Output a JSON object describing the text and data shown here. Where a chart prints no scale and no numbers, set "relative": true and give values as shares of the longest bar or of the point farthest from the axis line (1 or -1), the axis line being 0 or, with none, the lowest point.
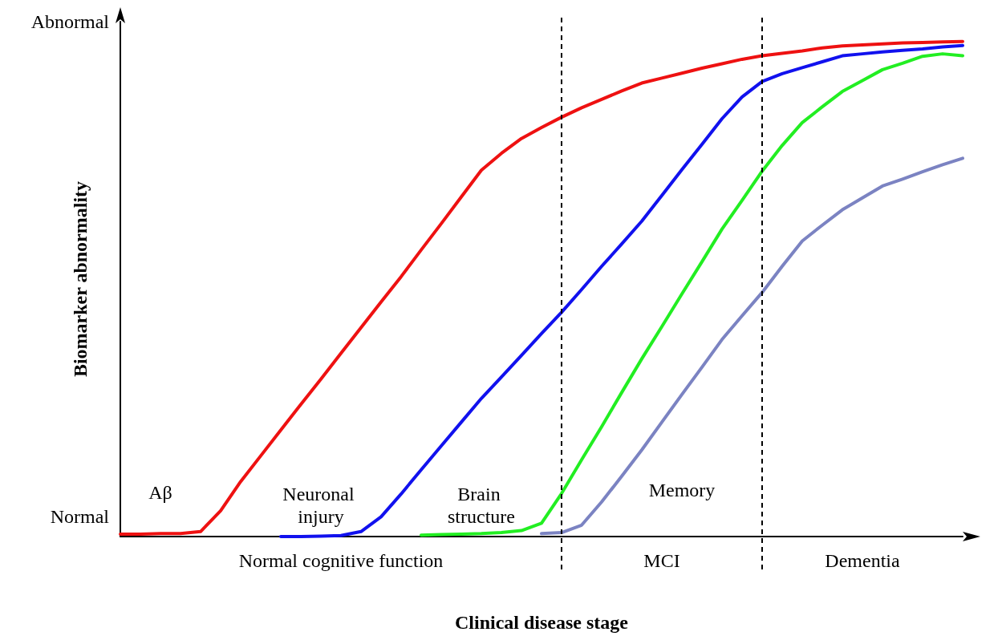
{
  "chart_data": {
    "type": "line",
    "relative": true,
    "xlabel": "Clinical disease stage",
    "ylabel": "Biomarker abnormality",
    "categories": [
      null,
      null,
      null,
      null,
      null,
      null,
      null,
      null,
      null,
      null,
      null,
      null,
      null,
      null,
      null,
      null,
      null,
      null,
      null,
      null,
      null,
      null,
      null,
      null,
      null,
      null,
      null,
      null,
      null,
      null,
      null,
      null,
      null,
      null,
      null,
      null,
      null,
      null,
      null,
      null,
      null,
      null,
      null
    ],
    "grid": false,
    "legend": false,
    "marker": "none",
    "line_style": "solid",
    "series": [
      {
        "name": "Aβ",
        "color": "#ee1111",
        "values": [
          0.005,
          0.005,
          0.006,
          0.006,
          0.01,
          0.052,
          0.111,
          0.163,
          0.215,
          0.267,
          0.318,
          0.37,
          0.422,
          0.474,
          0.525,
          0.579,
          0.632,
          0.686,
          0.74,
          0.774,
          0.804,
          0.826,
          0.847,
          0.866,
          0.883,
          0.9,
          0.916,
          0.926,
          0.936,
          0.946,
          0.955,
          0.964,
          0.971,
          0.976,
          0.981,
          0.987,
          0.991,
          0.993,
          0.995,
          0.997,
          0.998,
          0.999,
          1
        ]
      },
      {
        "name": "Neuronal injury",
        "color": "#1111ee",
        "values": [
          null,
          null,
          null,
          null,
          null,
          null,
          null,
          null,
          0,
          0,
          0.001,
          0.002,
          0.01,
          0.04,
          0.086,
          0.135,
          0.183,
          0.231,
          0.279,
          0.322,
          0.366,
          0.41,
          0.453,
          0.499,
          0.546,
          0.591,
          0.637,
          0.689,
          0.741,
          0.792,
          0.844,
          0.888,
          0.919,
          0.935,
          0.947,
          0.959,
          0.971,
          0.975,
          0.979,
          0.982,
          0.985,
          0.989,
          0.992
        ]
      },
      {
        "name": "Brain structure",
        "color": "#22ee22",
        "values": [
          null,
          null,
          null,
          null,
          null,
          null,
          null,
          null,
          null,
          null,
          null,
          null,
          null,
          null,
          null,
          0.003,
          0.004,
          0.005,
          0.006,
          0.008,
          0.012,
          0.027,
          0.087,
          0.155,
          0.222,
          0.291,
          0.359,
          0.424,
          0.49,
          0.555,
          0.621,
          0.679,
          0.738,
          0.79,
          0.836,
          0.868,
          0.899,
          0.921,
          0.943,
          0.956,
          0.97,
          0.975,
          0.971
        ]
      },
      {
        "name": "Memory",
        "color": "#7b83c2",
        "values": [
          null,
          null,
          null,
          null,
          null,
          null,
          null,
          null,
          null,
          null,
          null,
          null,
          null,
          null,
          null,
          null,
          null,
          null,
          null,
          null,
          null,
          0.006,
          0.008,
          0.023,
          0.07,
          0.122,
          0.175,
          0.231,
          0.287,
          0.342,
          0.398,
          0.446,
          0.493,
          0.546,
          0.597,
          0.629,
          0.66,
          0.684,
          0.708,
          0.722,
          0.737,
          0.751,
          0.764
        ]
      }
    ],
    "annotations": [
      "Abnormal",
      "Normal",
      "Normal cognitive function",
      "MCI",
      "Dementia"
    ]
  }
}
